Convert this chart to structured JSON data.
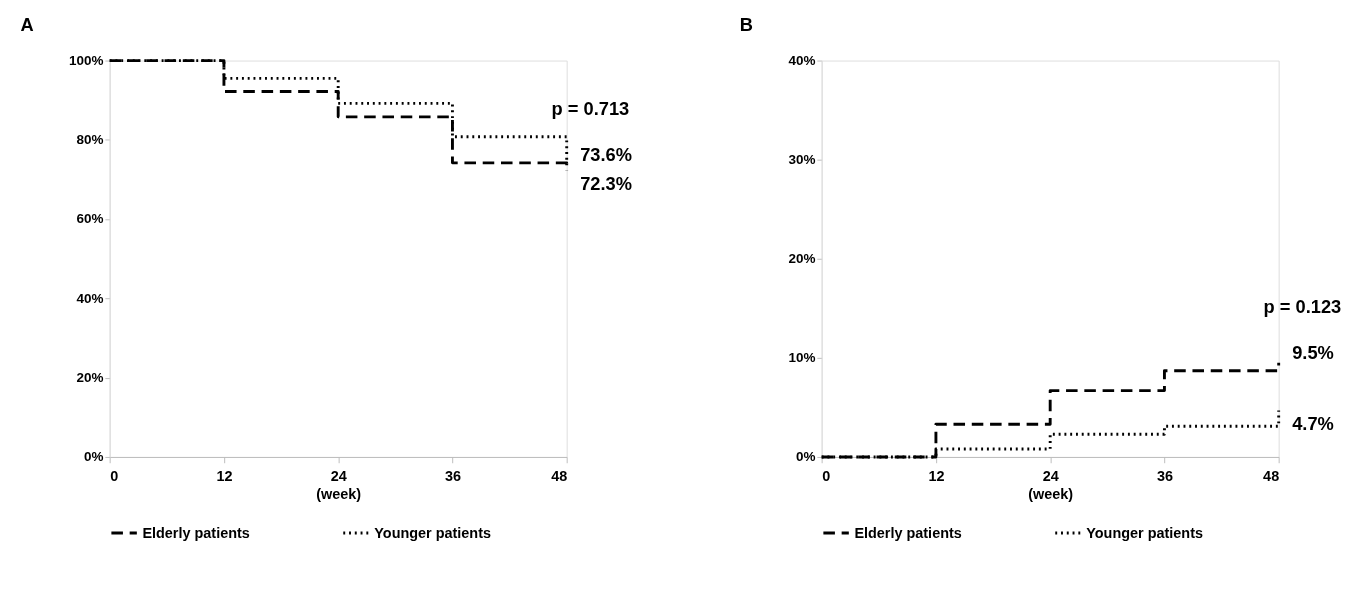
{
  "chart_data": [
    {
      "type": "step",
      "title": "A",
      "xlabel": "(week)",
      "x": [
        0,
        12,
        24,
        36,
        48
      ],
      "xlim": [
        0,
        48
      ],
      "xticks": [
        0,
        12,
        24,
        36,
        48
      ],
      "ylim": [
        0,
        100
      ],
      "yticks": [
        {
          "value": 0,
          "label": "0%"
        },
        {
          "value": 20,
          "label": "20%"
        },
        {
          "value": 40,
          "label": "40%"
        },
        {
          "value": 60,
          "label": "60%"
        },
        {
          "value": 80,
          "label": "80%"
        },
        {
          "value": 100,
          "label": "100%"
        }
      ],
      "series": [
        {
          "name": "Elderly patients",
          "color": "#000000",
          "line_style": "dashed",
          "values": [
            100,
            92.2,
            85.8,
            74.2,
            72.3
          ],
          "value_labels": [
            null,
            null,
            null,
            null,
            "72.3%"
          ]
        },
        {
          "name": "Younger patients",
          "color": "#000000",
          "line_style": "dotted",
          "values": [
            100,
            95.5,
            89.2,
            80.8,
            73.6
          ],
          "value_labels": [
            null,
            null,
            null,
            null,
            "73.6%"
          ]
        }
      ],
      "annotations": [
        "p = 0.713"
      ],
      "grid": false,
      "legend": "bottom"
    },
    {
      "type": "step",
      "title": "B",
      "xlabel": "(week)",
      "x": [
        0,
        12,
        24,
        36,
        48
      ],
      "xlim": [
        0,
        48
      ],
      "xticks": [
        0,
        12,
        24,
        36,
        48
      ],
      "ylim": [
        0,
        40
      ],
      "yticks": [
        {
          "value": 0,
          "label": "0%"
        },
        {
          "value": 10,
          "label": "10%"
        },
        {
          "value": 20,
          "label": "20%"
        },
        {
          "value": 30,
          "label": "30%"
        },
        {
          "value": 40,
          "label": "40%"
        }
      ],
      "series": [
        {
          "name": "Elderly patients",
          "color": "#000000",
          "line_style": "dashed",
          "values": [
            0,
            3.3,
            6.7,
            8.7,
            9.5
          ],
          "value_labels": [
            null,
            null,
            null,
            null,
            "9.5%"
          ]
        },
        {
          "name": "Younger patients",
          "color": "#000000",
          "line_style": "dotted",
          "values": [
            0,
            0.8,
            2.3,
            3.1,
            4.7
          ],
          "value_labels": [
            null,
            null,
            null,
            null,
            "4.7%"
          ]
        }
      ],
      "annotations": [
        "p = 0.123"
      ],
      "grid": false,
      "legend": "bottom"
    }
  ]
}
